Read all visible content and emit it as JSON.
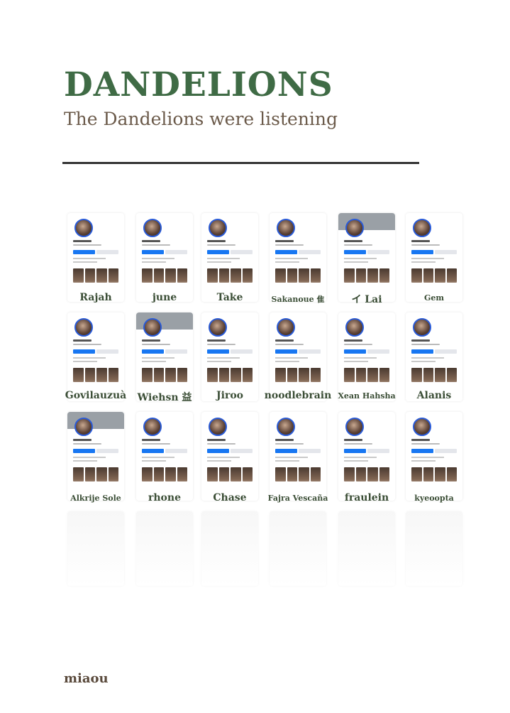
{
  "page": {
    "title": "DANDELIONS",
    "subtitle": "The Dandelions were listening",
    "footer": "miaou"
  },
  "profiles": [
    {
      "name": "Rajah"
    },
    {
      "name": "june"
    },
    {
      "name": "Take"
    },
    {
      "name": "Sakanoue 隹"
    },
    {
      "name": "イ Lai"
    },
    {
      "name": "Gem"
    },
    {
      "name": "Govilauzuà"
    },
    {
      "name": "Wiehsn 益"
    },
    {
      "name": "Jiroo"
    },
    {
      "name": "noodlebrain"
    },
    {
      "name": "Xean Hahsha"
    },
    {
      "name": "Alanis"
    },
    {
      "name": "Alkrije Sole"
    },
    {
      "name": "rhone"
    },
    {
      "name": "Chase"
    },
    {
      "name": "Fajra Vescaña"
    },
    {
      "name": "fraulein"
    },
    {
      "name": "kyeoopta"
    }
  ],
  "colors": {
    "title": "#3f6b45",
    "label": "#3b4e36",
    "accent": "#1877f2"
  }
}
